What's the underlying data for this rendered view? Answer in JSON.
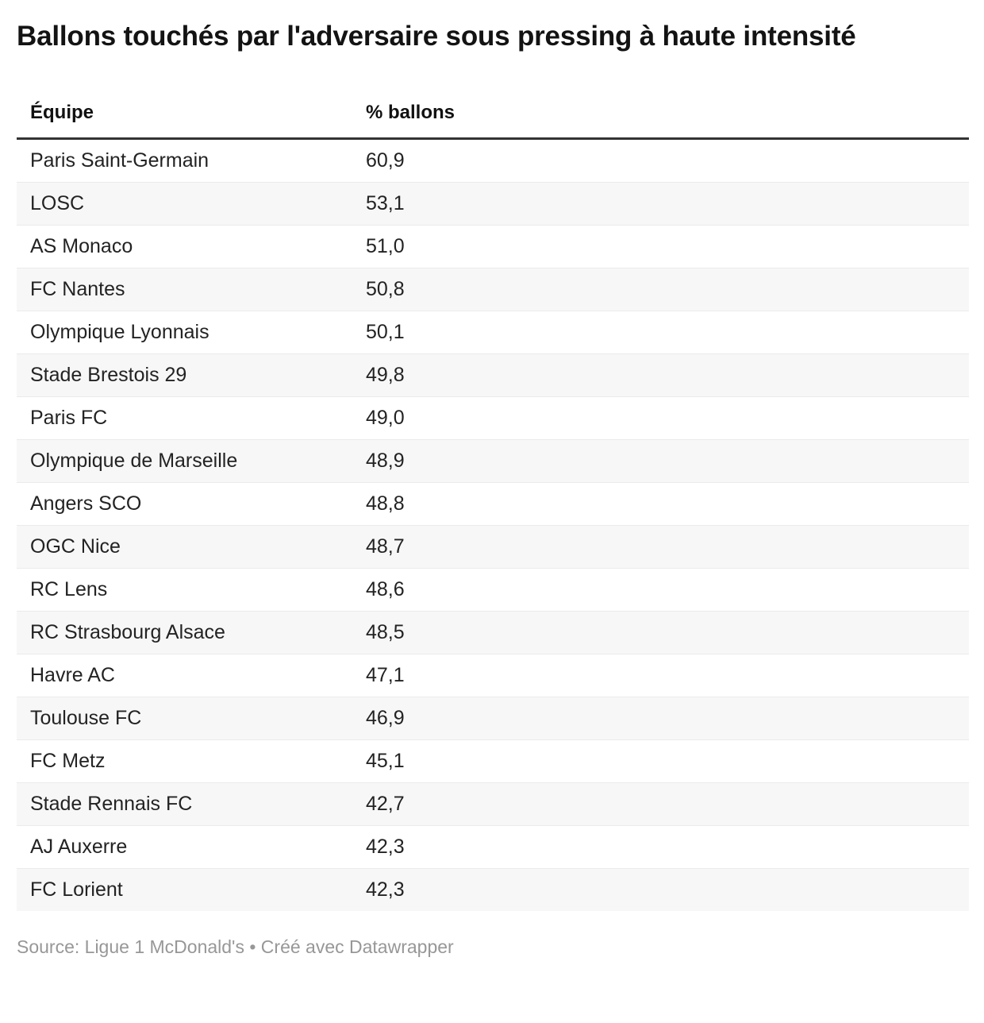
{
  "header": {
    "title": "Ballons touchés par l'adversaire sous pressing à haute intensité"
  },
  "table": {
    "columns": [
      "Équipe",
      "% ballons"
    ],
    "rows": [
      {
        "team": "Paris Saint-Germain",
        "value": "60,9"
      },
      {
        "team": "LOSC",
        "value": "53,1"
      },
      {
        "team": "AS Monaco",
        "value": "51,0"
      },
      {
        "team": "FC Nantes",
        "value": "50,8"
      },
      {
        "team": "Olympique Lyonnais",
        "value": "50,1"
      },
      {
        "team": "Stade Brestois 29",
        "value": "49,8"
      },
      {
        "team": "Paris FC",
        "value": "49,0"
      },
      {
        "team": "Olympique de Marseille",
        "value": "48,9"
      },
      {
        "team": "Angers SCO",
        "value": "48,8"
      },
      {
        "team": "OGC Nice",
        "value": "48,7"
      },
      {
        "team": "RC Lens",
        "value": "48,6"
      },
      {
        "team": "RC Strasbourg Alsace",
        "value": "48,5"
      },
      {
        "team": "Havre AC",
        "value": "47,1"
      },
      {
        "team": "Toulouse FC",
        "value": "46,9"
      },
      {
        "team": "FC Metz",
        "value": "45,1"
      },
      {
        "team": "Stade Rennais FC",
        "value": "42,7"
      },
      {
        "team": "AJ Auxerre",
        "value": "42,3"
      },
      {
        "team": "FC Lorient",
        "value": "42,3"
      }
    ]
  },
  "footer": {
    "source_label": "Source:",
    "source_name": "Ligue 1 McDonald's",
    "separator": "•",
    "attribution": "Créé avec Datawrapper"
  },
  "colors": {
    "title_text": "#131313",
    "header_border": "#333333",
    "row_text": "#232323",
    "alt_row_bg": "#f7f7f7",
    "row_border": "#ebebeb",
    "footer_text": "#979797"
  },
  "chart_data": {
    "type": "table",
    "title": "Ballons touchés par l'adversaire sous pressing à haute intensité",
    "columns": [
      "Équipe",
      "% ballons"
    ],
    "rows": [
      [
        "Paris Saint-Germain",
        60.9
      ],
      [
        "LOSC",
        53.1
      ],
      [
        "AS Monaco",
        51.0
      ],
      [
        "FC Nantes",
        50.8
      ],
      [
        "Olympique Lyonnais",
        50.1
      ],
      [
        "Stade Brestois 29",
        49.8
      ],
      [
        "Paris FC",
        49.0
      ],
      [
        "Olympique de Marseille",
        48.9
      ],
      [
        "Angers SCO",
        48.8
      ],
      [
        "OGC Nice",
        48.7
      ],
      [
        "RC Lens",
        48.6
      ],
      [
        "RC Strasbourg Alsace",
        48.5
      ],
      [
        "Havre AC",
        47.1
      ],
      [
        "Toulouse FC",
        46.9
      ],
      [
        "FC Metz",
        45.1
      ],
      [
        "Stade Rennais FC",
        42.7
      ],
      [
        "AJ Auxerre",
        42.3
      ],
      [
        "FC Lorient",
        42.3
      ]
    ],
    "value_format": "decimal-comma",
    "row_striping": "even-rows-gray",
    "source": "Ligue 1 McDonald's",
    "attribution": "Créé avec Datawrapper"
  }
}
